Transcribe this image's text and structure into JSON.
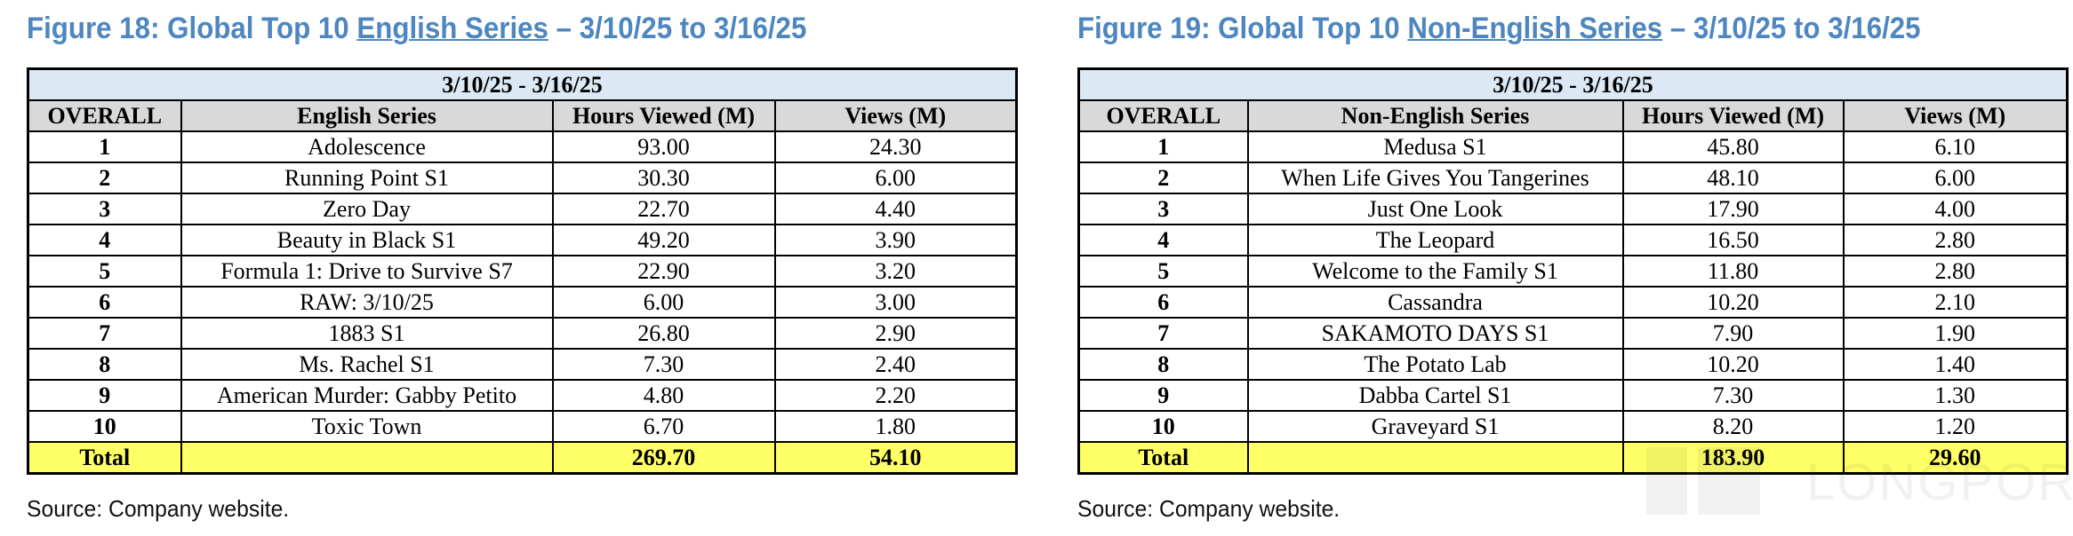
{
  "figures": [
    {
      "title_prefix": "Figure 18: Global Top 10 ",
      "title_underlined": "English Series",
      "title_suffix": " – 3/10/25 to 3/16/25",
      "date_range": "3/10/25 - 3/16/25",
      "headers": [
        "OVERALL",
        "English Series",
        "Hours Viewed (M)",
        "Views (M)"
      ],
      "rows": [
        [
          "1",
          "Adolescence",
          "93.00",
          "24.30"
        ],
        [
          "2",
          "Running Point S1",
          "30.30",
          "6.00"
        ],
        [
          "3",
          "Zero Day",
          "22.70",
          "4.40"
        ],
        [
          "4",
          "Beauty in Black S1",
          "49.20",
          "3.90"
        ],
        [
          "5",
          "Formula 1: Drive to Survive S7",
          "22.90",
          "3.20"
        ],
        [
          "6",
          "RAW: 3/10/25",
          "6.00",
          "3.00"
        ],
        [
          "7",
          "1883 S1",
          "26.80",
          "2.90"
        ],
        [
          "8",
          "Ms. Rachel S1",
          "7.30",
          "2.40"
        ],
        [
          "9",
          "American Murder: Gabby Petito",
          "4.80",
          "2.20"
        ],
        [
          "10",
          "Toxic Town",
          "6.70",
          "1.80"
        ]
      ],
      "total": {
        "label": "Total",
        "series": "",
        "hours": "269.70",
        "views": "54.10"
      },
      "source": "Source: Company website."
    },
    {
      "title_prefix": "Figure 19: Global Top 10 ",
      "title_underlined": "Non-English Series",
      "title_suffix": " – 3/10/25 to 3/16/25",
      "date_range": "3/10/25 - 3/16/25",
      "headers": [
        "OVERALL",
        "Non-English Series",
        "Hours Viewed (M)",
        "Views (M)"
      ],
      "rows": [
        [
          "1",
          "Medusa S1",
          "45.80",
          "6.10"
        ],
        [
          "2",
          "When Life Gives You Tangerines",
          "48.10",
          "6.00"
        ],
        [
          "3",
          "Just One Look",
          "17.90",
          "4.00"
        ],
        [
          "4",
          "The Leopard",
          "16.50",
          "2.80"
        ],
        [
          "5",
          "Welcome to the Family S1",
          "11.80",
          "2.80"
        ],
        [
          "6",
          "Cassandra",
          "10.20",
          "2.10"
        ],
        [
          "7",
          "SAKAMOTO DAYS S1",
          "7.90",
          "1.90"
        ],
        [
          "8",
          "The Potato Lab",
          "10.20",
          "1.40"
        ],
        [
          "9",
          "Dabba Cartel S1",
          "7.30",
          "1.30"
        ],
        [
          "10",
          "Graveyard S1",
          "8.20",
          "1.20"
        ]
      ],
      "total": {
        "label": "Total",
        "series": "",
        "hours": "183.90",
        "views": "29.60"
      },
      "source": "Source: Company website."
    }
  ],
  "watermark": {
    "text": "LONGPORT"
  }
}
